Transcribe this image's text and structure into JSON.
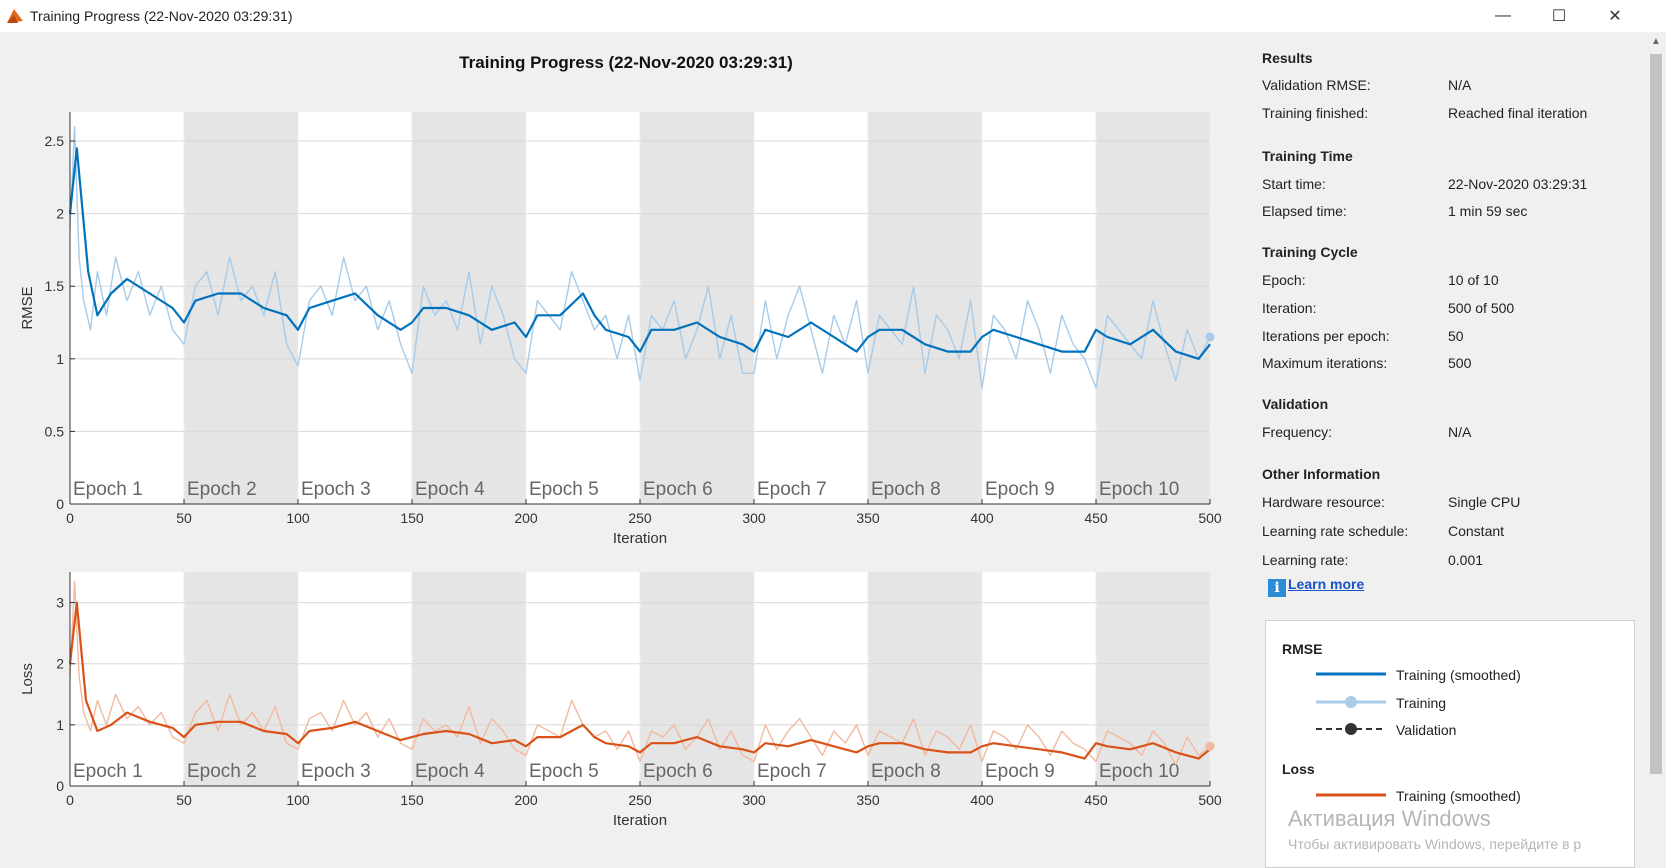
{
  "window": {
    "title": "Training Progress (22-Nov-2020 03:29:31)",
    "buttons": {
      "minimize": "—",
      "maximize": "☐",
      "close": "✕"
    },
    "icon": "matlab-icon"
  },
  "chart_data": [
    {
      "type": "line",
      "title": "Training Progress (22-Nov-2020 03:29:31)",
      "xlabel": "Iteration",
      "ylabel": "RMSE",
      "xlim": [
        0,
        500
      ],
      "ylim": [
        0,
        2.7
      ],
      "xticks": [
        0,
        50,
        100,
        150,
        200,
        250,
        300,
        350,
        400,
        450,
        500
      ],
      "yticks": [
        0,
        0.5,
        1,
        1.5,
        2,
        2.5
      ],
      "epoch_labels": [
        "Epoch 1",
        "Epoch 2",
        "Epoch 3",
        "Epoch 4",
        "Epoch 5",
        "Epoch 6",
        "Epoch 7",
        "Epoch 8",
        "Epoch 9",
        "Epoch 10"
      ],
      "series": [
        {
          "name": "Training (smoothed)",
          "color": "#0072bd",
          "x": [
            0,
            3,
            8,
            12,
            18,
            25,
            35,
            45,
            50,
            55,
            65,
            75,
            85,
            95,
            100,
            105,
            115,
            125,
            135,
            145,
            150,
            155,
            165,
            175,
            185,
            195,
            200,
            205,
            215,
            225,
            230,
            235,
            245,
            250,
            255,
            265,
            275,
            285,
            295,
            300,
            305,
            315,
            325,
            335,
            345,
            350,
            355,
            365,
            375,
            385,
            395,
            400,
            405,
            415,
            425,
            435,
            445,
            450,
            455,
            465,
            475,
            485,
            495,
            500
          ],
          "y": [
            2.0,
            2.45,
            1.6,
            1.3,
            1.45,
            1.55,
            1.45,
            1.35,
            1.25,
            1.4,
            1.45,
            1.45,
            1.35,
            1.3,
            1.2,
            1.35,
            1.4,
            1.45,
            1.3,
            1.2,
            1.25,
            1.35,
            1.35,
            1.3,
            1.2,
            1.25,
            1.15,
            1.3,
            1.3,
            1.45,
            1.3,
            1.2,
            1.15,
            1.05,
            1.2,
            1.2,
            1.25,
            1.15,
            1.1,
            1.05,
            1.2,
            1.15,
            1.25,
            1.15,
            1.05,
            1.15,
            1.2,
            1.2,
            1.1,
            1.05,
            1.05,
            1.15,
            1.2,
            1.15,
            1.1,
            1.05,
            1.05,
            1.2,
            1.15,
            1.1,
            1.2,
            1.05,
            1.0,
            1.1
          ]
        },
        {
          "name": "Training",
          "color": "#a7cbe8",
          "x": [
            0,
            2,
            4,
            6,
            9,
            12,
            16,
            20,
            25,
            30,
            35,
            40,
            45,
            50,
            55,
            60,
            65,
            70,
            75,
            80,
            85,
            90,
            95,
            100,
            105,
            110,
            115,
            120,
            125,
            130,
            135,
            140,
            145,
            150,
            155,
            160,
            165,
            170,
            175,
            180,
            185,
            190,
            195,
            200,
            205,
            210,
            215,
            220,
            225,
            230,
            235,
            240,
            245,
            250,
            255,
            260,
            265,
            270,
            275,
            280,
            285,
            290,
            295,
            300,
            305,
            310,
            315,
            320,
            325,
            330,
            335,
            340,
            345,
            350,
            355,
            360,
            365,
            370,
            375,
            380,
            385,
            390,
            395,
            400,
            405,
            410,
            415,
            420,
            425,
            430,
            435,
            440,
            445,
            450,
            455,
            460,
            465,
            470,
            475,
            480,
            485,
            490,
            495,
            500
          ],
          "y": [
            1.9,
            2.6,
            1.7,
            1.4,
            1.2,
            1.6,
            1.3,
            1.7,
            1.4,
            1.6,
            1.3,
            1.5,
            1.2,
            1.1,
            1.5,
            1.6,
            1.3,
            1.7,
            1.4,
            1.5,
            1.3,
            1.6,
            1.1,
            0.95,
            1.4,
            1.5,
            1.3,
            1.7,
            1.4,
            1.5,
            1.2,
            1.4,
            1.1,
            0.9,
            1.5,
            1.3,
            1.4,
            1.2,
            1.6,
            1.1,
            1.5,
            1.3,
            1.0,
            0.9,
            1.4,
            1.3,
            1.2,
            1.6,
            1.4,
            1.2,
            1.3,
            1.0,
            1.3,
            0.85,
            1.3,
            1.2,
            1.4,
            1.0,
            1.2,
            1.5,
            1.0,
            1.3,
            0.9,
            0.9,
            1.4,
            1.0,
            1.3,
            1.5,
            1.2,
            0.9,
            1.3,
            1.1,
            1.4,
            0.9,
            1.3,
            1.2,
            1.1,
            1.5,
            0.9,
            1.3,
            1.2,
            1.0,
            1.4,
            0.8,
            1.3,
            1.2,
            1.0,
            1.4,
            1.2,
            0.9,
            1.3,
            1.1,
            1.0,
            0.8,
            1.3,
            1.2,
            1.1,
            1.0,
            1.4,
            1.1,
            0.85,
            1.2,
            1.0,
            1.15
          ]
        }
      ]
    },
    {
      "type": "line",
      "xlabel": "Iteration",
      "ylabel": "Loss",
      "xlim": [
        0,
        500
      ],
      "ylim": [
        0,
        3.5
      ],
      "xticks": [
        0,
        50,
        100,
        150,
        200,
        250,
        300,
        350,
        400,
        450,
        500
      ],
      "yticks": [
        0,
        1,
        2,
        3
      ],
      "epoch_labels": [
        "Epoch 1",
        "Epoch 2",
        "Epoch 3",
        "Epoch 4",
        "Epoch 5",
        "Epoch 6",
        "Epoch 7",
        "Epoch 8",
        "Epoch 9",
        "Epoch 10"
      ],
      "series": [
        {
          "name": "Training (smoothed)",
          "color": "#d95319",
          "x": [
            0,
            3,
            7,
            12,
            18,
            25,
            35,
            45,
            50,
            55,
            65,
            75,
            85,
            95,
            100,
            105,
            115,
            125,
            135,
            145,
            150,
            155,
            165,
            175,
            185,
            195,
            200,
            205,
            215,
            225,
            230,
            235,
            245,
            250,
            255,
            265,
            275,
            285,
            295,
            300,
            305,
            315,
            325,
            335,
            345,
            350,
            355,
            365,
            375,
            385,
            395,
            400,
            405,
            415,
            425,
            435,
            445,
            450,
            455,
            465,
            475,
            485,
            495,
            500
          ],
          "y": [
            2.0,
            3.0,
            1.4,
            0.9,
            1.0,
            1.2,
            1.05,
            0.95,
            0.8,
            1.0,
            1.05,
            1.05,
            0.9,
            0.85,
            0.7,
            0.9,
            0.95,
            1.05,
            0.9,
            0.75,
            0.8,
            0.85,
            0.9,
            0.85,
            0.7,
            0.75,
            0.65,
            0.8,
            0.8,
            1.0,
            0.8,
            0.7,
            0.65,
            0.55,
            0.7,
            0.7,
            0.8,
            0.65,
            0.6,
            0.55,
            0.7,
            0.65,
            0.75,
            0.65,
            0.55,
            0.65,
            0.7,
            0.7,
            0.6,
            0.55,
            0.55,
            0.65,
            0.7,
            0.65,
            0.6,
            0.55,
            0.45,
            0.7,
            0.65,
            0.6,
            0.7,
            0.55,
            0.45,
            0.6
          ]
        },
        {
          "name": "Training",
          "color": "#f2b9a0",
          "x": [
            0,
            2,
            4,
            6,
            9,
            12,
            16,
            20,
            25,
            30,
            35,
            40,
            45,
            50,
            55,
            60,
            65,
            70,
            75,
            80,
            85,
            90,
            95,
            100,
            105,
            110,
            115,
            120,
            125,
            130,
            135,
            140,
            145,
            150,
            155,
            160,
            165,
            170,
            175,
            180,
            185,
            190,
            195,
            200,
            205,
            210,
            215,
            220,
            225,
            230,
            235,
            240,
            245,
            250,
            255,
            260,
            265,
            270,
            275,
            280,
            285,
            290,
            295,
            300,
            305,
            310,
            315,
            320,
            325,
            330,
            335,
            340,
            345,
            350,
            355,
            360,
            365,
            370,
            375,
            380,
            385,
            390,
            395,
            400,
            405,
            410,
            415,
            420,
            425,
            430,
            435,
            440,
            445,
            450,
            455,
            460,
            465,
            470,
            475,
            480,
            485,
            490,
            495,
            500
          ],
          "y": [
            1.8,
            3.35,
            1.8,
            1.2,
            0.9,
            1.4,
            1.0,
            1.5,
            1.1,
            1.3,
            1.0,
            1.2,
            0.8,
            0.7,
            1.2,
            1.4,
            0.9,
            1.5,
            1.0,
            1.2,
            0.9,
            1.3,
            0.7,
            0.6,
            1.1,
            1.2,
            0.9,
            1.4,
            1.0,
            1.2,
            0.8,
            1.1,
            0.7,
            0.6,
            1.1,
            0.9,
            1.0,
            0.8,
            1.3,
            0.7,
            1.1,
            0.9,
            0.6,
            0.5,
            1.0,
            0.9,
            0.8,
            1.4,
            1.0,
            0.8,
            0.9,
            0.6,
            0.9,
            0.4,
            0.9,
            0.8,
            1.0,
            0.6,
            0.8,
            1.1,
            0.6,
            0.9,
            0.5,
            0.4,
            1.0,
            0.6,
            0.9,
            1.1,
            0.8,
            0.5,
            0.9,
            0.7,
            1.0,
            0.5,
            0.9,
            0.8,
            0.7,
            1.1,
            0.5,
            0.9,
            0.8,
            0.6,
            1.0,
            0.4,
            0.9,
            0.8,
            0.6,
            1.0,
            0.8,
            0.5,
            0.9,
            0.7,
            0.6,
            0.4,
            0.9,
            0.8,
            0.7,
            0.5,
            0.9,
            0.7,
            0.35,
            0.8,
            0.5,
            0.65
          ]
        }
      ]
    }
  ],
  "results": {
    "heading": "Results",
    "rows": [
      {
        "label": "Validation RMSE:",
        "value": "N/A"
      },
      {
        "label": "Training finished:",
        "value": "Reached final iteration"
      }
    ]
  },
  "training_time": {
    "heading": "Training Time",
    "rows": [
      {
        "label": "Start time:",
        "value": "22-Nov-2020 03:29:31"
      },
      {
        "label": "Elapsed time:",
        "value": "1 min 59 sec"
      }
    ]
  },
  "training_cycle": {
    "heading": "Training Cycle",
    "rows": [
      {
        "label": "Epoch:",
        "value": "10 of 10"
      },
      {
        "label": "Iteration:",
        "value": "500 of 500"
      },
      {
        "label": "Iterations per epoch:",
        "value": "50"
      },
      {
        "label": "Maximum iterations:",
        "value": "500"
      }
    ]
  },
  "validation": {
    "heading": "Validation",
    "rows": [
      {
        "label": "Frequency:",
        "value": "N/A"
      }
    ]
  },
  "other_info": {
    "heading": "Other Information",
    "rows": [
      {
        "label": "Hardware resource:",
        "value": "Single CPU"
      },
      {
        "label": "Learning rate schedule:",
        "value": "Constant"
      },
      {
        "label": "Learning rate:",
        "value": "0.001"
      }
    ]
  },
  "learn_more": {
    "label": "Learn more",
    "icon": "info-icon"
  },
  "legend": {
    "rmse_heading": "RMSE",
    "rmse_items": [
      "Training (smoothed)",
      "Training",
      "Validation"
    ],
    "loss_heading": "Loss",
    "loss_items": [
      "Training (smoothed)"
    ],
    "colors": {
      "rmse_smoothed": "#0072bd",
      "rmse_training": "#a7cbe8",
      "validation": "#333333",
      "loss_smoothed": "#d95319"
    }
  },
  "watermark": {
    "line1": "Активация Windows",
    "line2": "Чтобы активировать Windows, перейдите в р"
  }
}
